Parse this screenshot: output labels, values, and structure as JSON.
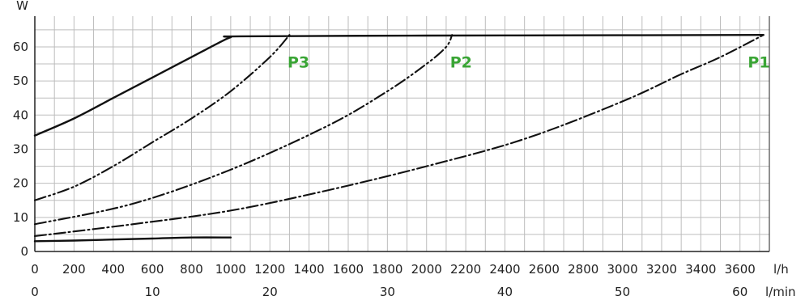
{
  "chart_data": {
    "type": "line",
    "title": "",
    "ylabel": "W",
    "xlabel": "l/h",
    "x2label": "l/min",
    "xlim": [
      0,
      3750
    ],
    "ylim": [
      0,
      69
    ],
    "grid": true,
    "xticks": [
      0,
      200,
      400,
      600,
      800,
      1000,
      1200,
      1400,
      1600,
      1800,
      2000,
      2200,
      2400,
      2600,
      2800,
      3000,
      3200,
      3400,
      3600
    ],
    "xtick_labels": [
      "0",
      "200",
      "400",
      "600",
      "800",
      "1000",
      "1200",
      "1400",
      "1600",
      "1800",
      "2000",
      "2200",
      "2400",
      "2600",
      "2800",
      "3000",
      "3200",
      "3400",
      "3600"
    ],
    "x2ticks": [
      0,
      10,
      20,
      30,
      40,
      50,
      60
    ],
    "x2tick_labels": [
      "0",
      "10",
      "20",
      "30",
      "40",
      "50",
      "60"
    ],
    "yticks": [
      0,
      10,
      20,
      30,
      40,
      50,
      60
    ],
    "ytick_labels": [
      "0",
      "10",
      "20",
      "30",
      "40",
      "50",
      "60"
    ],
    "label_color": "#3aa535",
    "line_color": "#111111",
    "series": [
      {
        "name": "P1",
        "style": "dashdot",
        "x": [
          0,
          500,
          1000,
          1500,
          2000,
          2500,
          3000,
          3300,
          3500,
          3720
        ],
        "y": [
          4.5,
          8,
          12,
          18,
          25,
          33,
          44,
          52,
          57,
          63.5
        ]
      },
      {
        "name": "P2",
        "style": "dashdotdot",
        "x": [
          0,
          500,
          1000,
          1500,
          1800,
          2000,
          2100,
          2130
        ],
        "y": [
          8,
          14,
          24,
          37,
          47,
          55,
          60,
          63.5
        ]
      },
      {
        "name": "P3",
        "style": "dashdotdot",
        "x": [
          0,
          200,
          400,
          600,
          800,
          1000,
          1200,
          1300
        ],
        "y": [
          15,
          19,
          25,
          32,
          39,
          47,
          57,
          63.5
        ]
      },
      {
        "name": "",
        "style": "solid",
        "x": [
          0,
          200,
          400,
          600,
          800,
          950,
          1000,
          1050,
          2000,
          3000,
          3720
        ],
        "y": [
          34,
          39,
          45,
          51,
          57,
          61.5,
          62.8,
          63.1,
          63.3,
          63.4,
          63.5
        ]
      },
      {
        "name": "",
        "style": "solid",
        "x": [
          0,
          200,
          400,
          600,
          800,
          1000
        ],
        "y": [
          3,
          3.2,
          3.5,
          3.8,
          4.1,
          4.1
        ]
      }
    ],
    "annotations": [
      {
        "text": "P1",
        "x": 3640,
        "y": 58.5
      },
      {
        "text": "P2",
        "x": 2120,
        "y": 58.5
      },
      {
        "text": "P3",
        "x": 1290,
        "y": 58.5
      }
    ]
  }
}
